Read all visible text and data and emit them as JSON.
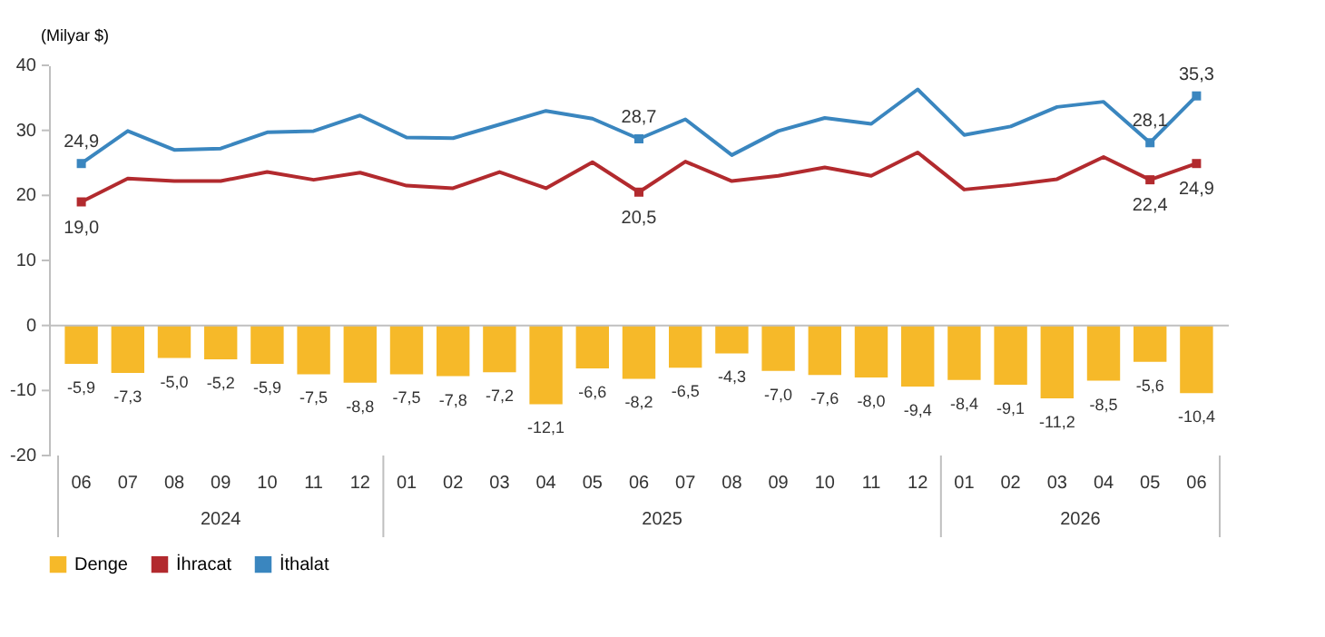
{
  "chart_data": {
    "type": "bar",
    "ylabel": "(Milyar $)",
    "categories": [
      "06",
      "07",
      "08",
      "09",
      "10",
      "11",
      "12",
      "01",
      "02",
      "03",
      "04",
      "05",
      "06",
      "07",
      "08",
      "09",
      "10",
      "11",
      "12",
      "01",
      "02",
      "03",
      "04",
      "05",
      "06"
    ],
    "series": [
      {
        "name": "Denge",
        "color": "#f6b929",
        "values": [
          -5.9,
          -7.3,
          -5.0,
          -5.2,
          -5.9,
          -7.5,
          -8.8,
          -7.5,
          -7.8,
          -7.2,
          -12.1,
          -6.6,
          -8.2,
          -6.5,
          -4.3,
          -7.0,
          -7.6,
          -8.0,
          -9.4,
          -8.4,
          -9.1,
          -11.2,
          -8.5,
          -5.6,
          -10.4
        ],
        "value_labels": [
          "-5,9",
          "-7,3",
          "-5,0",
          "-5,2",
          "-5,9",
          "-7,5",
          "-8,8",
          "-7,5",
          "-7,8",
          "-7,2",
          "-12,1",
          "-6,6",
          "-8,2",
          "-6,5",
          "-4,3",
          "-7,0",
          "-7,6",
          "-8,0",
          "-9,4",
          "-8,4",
          "-9,1",
          "-11,2",
          "-8,5",
          "-5,6",
          "-10,4"
        ]
      },
      {
        "name": "İhracat",
        "type": "line",
        "color": "#b22a2e",
        "values": [
          19.0,
          22.6,
          22.2,
          22.2,
          23.6,
          22.4,
          23.5,
          21.5,
          21.1,
          23.6,
          21.1,
          25.1,
          20.5,
          25.2,
          22.2,
          23.0,
          24.3,
          23.0,
          26.6,
          20.9,
          21.6,
          22.5,
          25.9,
          22.4,
          24.9
        ],
        "value_labels": [
          "19,0",
          null,
          null,
          null,
          null,
          null,
          null,
          null,
          null,
          null,
          null,
          null,
          "20,5",
          null,
          null,
          null,
          null,
          null,
          null,
          null,
          null,
          null,
          null,
          "22,4",
          "24,9"
        ]
      },
      {
        "name": "İthalat",
        "type": "line",
        "color": "#3a86bf",
        "values": [
          24.9,
          29.9,
          27.0,
          27.2,
          29.7,
          29.9,
          32.3,
          28.9,
          28.8,
          30.9,
          33.0,
          31.8,
          28.7,
          31.7,
          26.2,
          29.9,
          31.9,
          31.0,
          36.3,
          29.3,
          30.6,
          33.6,
          34.4,
          28.1,
          35.3
        ],
        "value_labels": [
          "24,9",
          null,
          null,
          null,
          null,
          null,
          null,
          null,
          null,
          null,
          null,
          null,
          "28,7",
          null,
          null,
          null,
          null,
          null,
          null,
          null,
          null,
          null,
          null,
          "28,1",
          "35,3"
        ]
      }
    ],
    "ylim": [
      -20,
      40
    ],
    "yticks": [
      -20,
      -10,
      0,
      10,
      20,
      30,
      40
    ],
    "ref_lines": [
      {
        "axis": "y",
        "value": 0,
        "color": "#bfbfbf"
      }
    ],
    "annotations": [
      "2024",
      "2025",
      "2026"
    ],
    "grid": false,
    "legend": "bottom"
  }
}
